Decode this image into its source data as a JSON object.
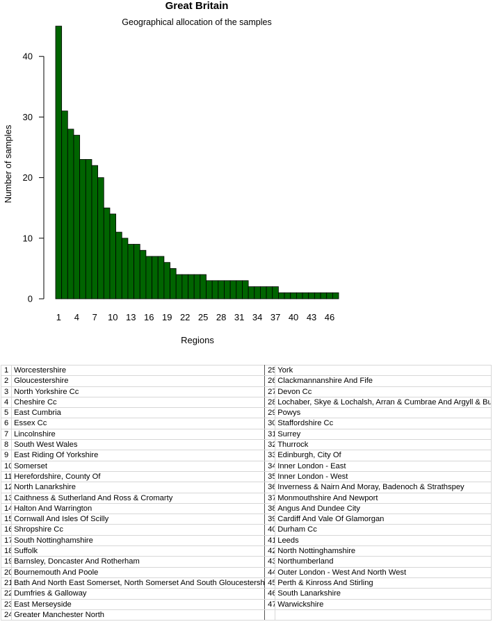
{
  "chart_data": {
    "type": "bar",
    "title": "Great Britain",
    "subtitle": "Geographical allocation of the samples",
    "xlabel": "Regions",
    "ylabel": "Number of samples",
    "ylim": [
      0,
      45
    ],
    "yticks": [
      0,
      10,
      20,
      30,
      40
    ],
    "xticks": [
      1,
      4,
      7,
      10,
      13,
      16,
      19,
      22,
      25,
      28,
      31,
      34,
      37,
      40,
      43,
      46
    ],
    "bar_color": "#006400",
    "categories": [
      1,
      2,
      3,
      4,
      5,
      6,
      7,
      8,
      9,
      10,
      11,
      12,
      13,
      14,
      15,
      16,
      17,
      18,
      19,
      20,
      21,
      22,
      23,
      24,
      25,
      26,
      27,
      28,
      29,
      30,
      31,
      32,
      33,
      34,
      35,
      36,
      37,
      38,
      39,
      40,
      41,
      42,
      43,
      44,
      45,
      46,
      47
    ],
    "values": [
      45,
      31,
      28,
      27,
      23,
      23,
      22,
      20,
      15,
      14,
      11,
      10,
      9,
      9,
      8,
      7,
      7,
      7,
      6,
      5,
      4,
      4,
      4,
      4,
      4,
      3,
      3,
      3,
      3,
      3,
      3,
      3,
      2,
      2,
      2,
      2,
      2,
      1,
      1,
      1,
      1,
      1,
      1,
      1,
      1,
      1,
      1
    ]
  },
  "legend_table": [
    {
      "n": "1",
      "name": "Worcestershire"
    },
    {
      "n": "2",
      "name": "Gloucestershire"
    },
    {
      "n": "3",
      "name": "North Yorkshire Cc"
    },
    {
      "n": "4",
      "name": "Cheshire Cc"
    },
    {
      "n": "5",
      "name": "East Cumbria"
    },
    {
      "n": "6",
      "name": "Essex Cc"
    },
    {
      "n": "7",
      "name": "Lincolnshire"
    },
    {
      "n": "8",
      "name": "South West Wales"
    },
    {
      "n": "9",
      "name": "East Riding Of Yorkshire"
    },
    {
      "n": "10",
      "name": "Somerset"
    },
    {
      "n": "11",
      "name": "Herefordshire, County Of"
    },
    {
      "n": "12",
      "name": "North Lanarkshire"
    },
    {
      "n": "13",
      "name": "Caithness & Sutherland And Ross & Cromarty"
    },
    {
      "n": "14",
      "name": "Halton And Warrington"
    },
    {
      "n": "15",
      "name": "Cornwall And Isles Of Scilly"
    },
    {
      "n": "16",
      "name": "Shropshire Cc"
    },
    {
      "n": "17",
      "name": "South Nottinghamshire"
    },
    {
      "n": "18",
      "name": "Suffolk"
    },
    {
      "n": "19",
      "name": "Barnsley, Doncaster And Rotherham"
    },
    {
      "n": "20",
      "name": "Bournemouth And Poole"
    },
    {
      "n": "21",
      "name": "Bath And North East Somerset, North Somerset And South Gloucestershire"
    },
    {
      "n": "22",
      "name": "Dumfries & Galloway"
    },
    {
      "n": "23",
      "name": "East Merseyside"
    },
    {
      "n": "24",
      "name": "Greater Manchester North"
    },
    {
      "n": "25",
      "name": "York"
    },
    {
      "n": "26",
      "name": "Clackmannanshire And Fife"
    },
    {
      "n": "27",
      "name": "Devon Cc"
    },
    {
      "n": "28",
      "name": "Lochaber, Skye & Lochalsh, Arran & Cumbrae And Argyll & Bute"
    },
    {
      "n": "29",
      "name": "Powys"
    },
    {
      "n": "30",
      "name": "Staffordshire Cc"
    },
    {
      "n": "31",
      "name": "Surrey"
    },
    {
      "n": "32",
      "name": "Thurrock"
    },
    {
      "n": "33",
      "name": "Edinburgh, City Of"
    },
    {
      "n": "34",
      "name": "Inner London - East"
    },
    {
      "n": "35",
      "name": "Inner London - West"
    },
    {
      "n": "36",
      "name": "Inverness & Nairn And Moray, Badenoch & Strathspey"
    },
    {
      "n": "37",
      "name": "Monmouthshire And Newport"
    },
    {
      "n": "38",
      "name": "Angus And Dundee City"
    },
    {
      "n": "39",
      "name": "Cardiff And Vale Of Glamorgan"
    },
    {
      "n": "40",
      "name": "Durham Cc"
    },
    {
      "n": "41",
      "name": "Leeds"
    },
    {
      "n": "42",
      "name": "North Nottinghamshire"
    },
    {
      "n": "43",
      "name": "Northumberland"
    },
    {
      "n": "44",
      "name": "Outer London - West And North West"
    },
    {
      "n": "45",
      "name": "Perth & Kinross And Stirling"
    },
    {
      "n": "46",
      "name": "South Lanarkshire"
    },
    {
      "n": "47",
      "name": "Warwickshire"
    }
  ]
}
